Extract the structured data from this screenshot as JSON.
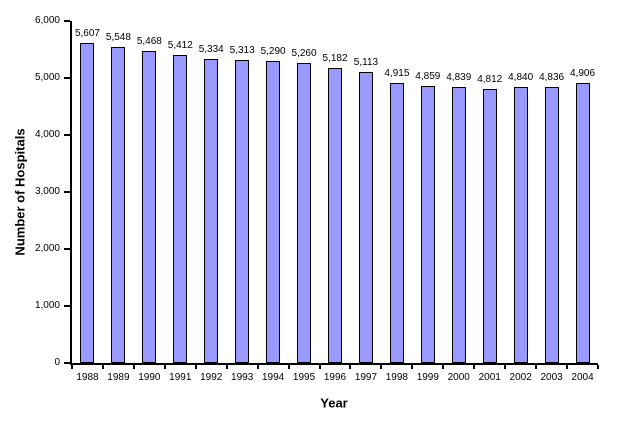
{
  "chart_data": {
    "type": "bar",
    "title": "",
    "xlabel": "Year",
    "ylabel": "Number of Hospitals",
    "categories": [
      "1988",
      "1989",
      "1990",
      "1991",
      "1992",
      "1993",
      "1994",
      "1995",
      "1996",
      "1997",
      "1998",
      "1999",
      "2000",
      "2001",
      "2002",
      "2003",
      "2004"
    ],
    "values": [
      5607,
      5548,
      5468,
      5412,
      5334,
      5313,
      5290,
      5260,
      5182,
      5113,
      4915,
      4859,
      4839,
      4812,
      4840,
      4836,
      4906
    ],
    "value_labels": [
      "5,607",
      "5,548",
      "5,468",
      "5,412",
      "5,334",
      "5,313",
      "5,290",
      "5,260",
      "5,182",
      "5,113",
      "4,915",
      "4,859",
      "4,839",
      "4,812",
      "4,840",
      "4,836",
      "4,906"
    ],
    "ylim": [
      0,
      6000
    ],
    "ytick_labels": [
      "0",
      "1,000",
      "2,000",
      "3,000",
      "4,000",
      "5,000",
      "6,000"
    ],
    "grid": false,
    "legend": "none",
    "bar_color": "#9999FF",
    "bar_border_color": "#000000",
    "background_color": "#FFFFFF"
  }
}
